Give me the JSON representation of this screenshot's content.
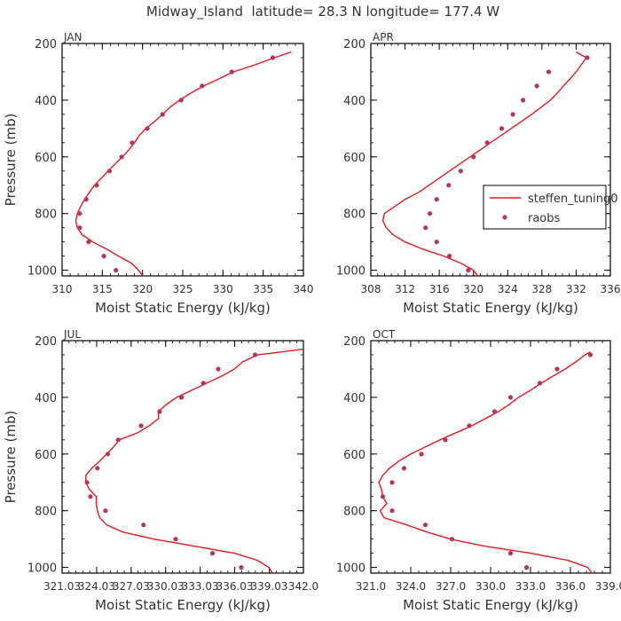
{
  "title": "Midway_Island  latitude= 28.3 N longitude= 177.4 W",
  "chart_data": [
    {
      "type": "line",
      "panel_label": "JAN",
      "xlabel": "Moist Static Energy (kJ/kg)",
      "ylabel": "Pressure (mb)",
      "xlim": [
        310,
        340
      ],
      "ylim": [
        1020,
        200
      ],
      "xticks": [
        "310",
        "315",
        "320",
        "325",
        "330",
        "335",
        "340"
      ],
      "xtick_values": [
        310,
        315,
        320,
        325,
        330,
        335,
        340
      ],
      "yticks": [
        "200",
        "400",
        "600",
        "800",
        "1000"
      ],
      "ytick_values": [
        200,
        400,
        600,
        800,
        1000
      ],
      "series": [
        {
          "name": "steffen_tuning0",
          "kind": "line",
          "color": "#e41a1c",
          "points": [
            [
              320.0,
              1020
            ],
            [
              319.5,
              1000
            ],
            [
              318.6,
              975
            ],
            [
              317.0,
              950
            ],
            [
              315.5,
              925
            ],
            [
              313.8,
              900
            ],
            [
              312.5,
              875
            ],
            [
              311.9,
              850
            ],
            [
              311.7,
              825
            ],
            [
              311.9,
              800
            ],
            [
              312.3,
              775
            ],
            [
              312.8,
              750
            ],
            [
              313.4,
              725
            ],
            [
              314.0,
              700
            ],
            [
              314.9,
              675
            ],
            [
              315.7,
              650
            ],
            [
              316.6,
              625
            ],
            [
              317.5,
              600
            ],
            [
              318.3,
              575
            ],
            [
              319.0,
              550
            ],
            [
              319.6,
              525
            ],
            [
              320.4,
              500
            ],
            [
              321.5,
              475
            ],
            [
              322.5,
              450
            ],
            [
              323.4,
              425
            ],
            [
              324.6,
              400
            ],
            [
              326.0,
              375
            ],
            [
              327.6,
              350
            ],
            [
              329.5,
              325
            ],
            [
              331.3,
              300
            ],
            [
              334.0,
              275
            ],
            [
              336.4,
              250
            ],
            [
              338.5,
              230
            ]
          ]
        },
        {
          "name": "raobs",
          "kind": "markers",
          "color": "#b5345c",
          "points": [
            [
              316.7,
              1000
            ],
            [
              315.2,
              950
            ],
            [
              313.3,
              900
            ],
            [
              312.2,
              850
            ],
            [
              312.2,
              800
            ],
            [
              313.0,
              750
            ],
            [
              314.3,
              700
            ],
            [
              315.9,
              650
            ],
            [
              317.4,
              600
            ],
            [
              318.7,
              550
            ],
            [
              320.6,
              500
            ],
            [
              322.5,
              450
            ],
            [
              324.8,
              400
            ],
            [
              327.4,
              350
            ],
            [
              331.1,
              300
            ],
            [
              336.2,
              250
            ]
          ]
        }
      ]
    },
    {
      "type": "line",
      "panel_label": "APR",
      "xlabel": "Moist Static Energy (kJ/kg)",
      "ylabel": "",
      "xlim": [
        308,
        336
      ],
      "ylim": [
        1020,
        200
      ],
      "xticks": [
        "308",
        "312",
        "316",
        "320",
        "324",
        "328",
        "332",
        "336"
      ],
      "xtick_values": [
        308,
        312,
        316,
        320,
        324,
        328,
        332,
        336
      ],
      "yticks": [
        "200",
        "400",
        "600",
        "800",
        "1000"
      ],
      "ytick_values": [
        200,
        400,
        600,
        800,
        1000
      ],
      "legend": {
        "entries": [
          "steffen_tuning0",
          "raobs"
        ],
        "position": "right-middle"
      },
      "series": [
        {
          "name": "steffen_tuning0",
          "kind": "line",
          "color": "#e41a1c",
          "points": [
            [
              320.5,
              1020
            ],
            [
              320.0,
              1000
            ],
            [
              318.5,
              975
            ],
            [
              316.5,
              950
            ],
            [
              314.0,
              925
            ],
            [
              312.0,
              900
            ],
            [
              310.6,
              875
            ],
            [
              309.8,
              850
            ],
            [
              309.4,
              825
            ],
            [
              309.6,
              800
            ],
            [
              310.8,
              775
            ],
            [
              312.0,
              750
            ],
            [
              313.6,
              725
            ],
            [
              314.8,
              700
            ],
            [
              316.0,
              675
            ],
            [
              317.2,
              650
            ],
            [
              318.4,
              625
            ],
            [
              319.6,
              600
            ],
            [
              320.8,
              575
            ],
            [
              322.0,
              550
            ],
            [
              323.2,
              525
            ],
            [
              324.4,
              500
            ],
            [
              325.6,
              475
            ],
            [
              326.8,
              450
            ],
            [
              327.9,
              425
            ],
            [
              329.0,
              400
            ],
            [
              329.8,
              375
            ],
            [
              330.5,
              350
            ],
            [
              331.3,
              325
            ],
            [
              332.0,
              300
            ],
            [
              332.6,
              275
            ],
            [
              333.2,
              250
            ],
            [
              332.0,
              230
            ]
          ]
        },
        {
          "name": "raobs",
          "kind": "markers",
          "color": "#b5345c",
          "points": [
            [
              319.4,
              1000
            ],
            [
              317.2,
              950
            ],
            [
              315.7,
              900
            ],
            [
              314.4,
              850
            ],
            [
              314.9,
              800
            ],
            [
              315.7,
              750
            ],
            [
              317.1,
              700
            ],
            [
              318.5,
              650
            ],
            [
              320.0,
              600
            ],
            [
              321.6,
              550
            ],
            [
              323.3,
              500
            ],
            [
              324.6,
              450
            ],
            [
              325.8,
              400
            ],
            [
              327.4,
              350
            ],
            [
              328.8,
              300
            ],
            [
              333.3,
              250
            ]
          ]
        }
      ]
    },
    {
      "type": "line",
      "panel_label": "JUL",
      "xlabel": "Moist Static Energy (kJ/kg)",
      "ylabel": "Pressure (mb)",
      "xlim": [
        321.03,
        342.0
      ],
      "ylim": [
        1020,
        200
      ],
      "xticks": [
        "321.03",
        "324.03",
        "327.03",
        "330.03",
        "333.03",
        "336.03",
        "339.03",
        "342.0"
      ],
      "xtick_values": [
        321.03,
        324.03,
        327.03,
        330.03,
        333.03,
        336.03,
        339.03,
        342.0
      ],
      "yticks": [
        "200",
        "400",
        "600",
        "800",
        "1000"
      ],
      "ytick_values": [
        200,
        400,
        600,
        800,
        1000
      ],
      "series": [
        {
          "name": "steffen_tuning0",
          "kind": "line",
          "color": "#e41a1c",
          "points": [
            [
              339.3,
              1020
            ],
            [
              339.0,
              1000
            ],
            [
              338.0,
              975
            ],
            [
              336.0,
              950
            ],
            [
              332.5,
              925
            ],
            [
              329.0,
              900
            ],
            [
              326.3,
              875
            ],
            [
              324.9,
              850
            ],
            [
              324.3,
              825
            ],
            [
              324.1,
              800
            ],
            [
              324.0,
              775
            ],
            [
              324.0,
              750
            ],
            [
              323.4,
              725
            ],
            [
              323.1,
              700
            ],
            [
              323.1,
              675
            ],
            [
              323.6,
              650
            ],
            [
              324.3,
              625
            ],
            [
              324.9,
              600
            ],
            [
              325.5,
              575
            ],
            [
              326.0,
              550
            ],
            [
              327.6,
              525
            ],
            [
              328.6,
              500
            ],
            [
              329.4,
              475
            ],
            [
              329.4,
              450
            ],
            [
              330.1,
              425
            ],
            [
              331.0,
              400
            ],
            [
              332.3,
              375
            ],
            [
              333.6,
              350
            ],
            [
              334.9,
              325
            ],
            [
              336.0,
              300
            ],
            [
              336.7,
              275
            ],
            [
              338.0,
              250
            ],
            [
              342.0,
              230
            ]
          ]
        },
        {
          "name": "raobs",
          "kind": "markers",
          "color": "#b5345c",
          "points": [
            [
              336.6,
              1000
            ],
            [
              334.1,
              950
            ],
            [
              330.9,
              900
            ],
            [
              328.1,
              850
            ],
            [
              324.8,
              800
            ],
            [
              323.5,
              750
            ],
            [
              323.2,
              700
            ],
            [
              324.1,
              650
            ],
            [
              325.0,
              600
            ],
            [
              325.9,
              550
            ],
            [
              327.9,
              500
            ],
            [
              329.5,
              450
            ],
            [
              331.4,
              400
            ],
            [
              333.3,
              350
            ],
            [
              334.6,
              300
            ],
            [
              337.8,
              250
            ]
          ]
        }
      ]
    },
    {
      "type": "line",
      "panel_label": "OCT",
      "xlabel": "Moist Static Energy (kJ/kg)",
      "ylabel": "",
      "xlim": [
        321.0,
        339.0
      ],
      "ylim": [
        1020,
        200
      ],
      "xticks": [
        "321.0",
        "324.0",
        "327.0",
        "330.0",
        "333.0",
        "336.0",
        "339.0"
      ],
      "xtick_values": [
        321.0,
        324.0,
        327.0,
        330.0,
        333.0,
        336.0,
        339.0
      ],
      "yticks": [
        "200",
        "400",
        "600",
        "800",
        "1000"
      ],
      "ytick_values": [
        200,
        400,
        600,
        800,
        1000
      ],
      "series": [
        {
          "name": "steffen_tuning0",
          "kind": "line",
          "color": "#e41a1c",
          "points": [
            [
              337.6,
              1020
            ],
            [
              337.3,
              1000
            ],
            [
              335.8,
              975
            ],
            [
              333.0,
              950
            ],
            [
              329.5,
              925
            ],
            [
              327.0,
              900
            ],
            [
              325.2,
              875
            ],
            [
              323.7,
              850
            ],
            [
              322.0,
              825
            ],
            [
              321.7,
              800
            ],
            [
              322.2,
              775
            ],
            [
              321.9,
              750
            ],
            [
              321.8,
              725
            ],
            [
              321.6,
              700
            ],
            [
              321.9,
              675
            ],
            [
              322.4,
              650
            ],
            [
              323.1,
              625
            ],
            [
              324.0,
              600
            ],
            [
              325.1,
              575
            ],
            [
              326.2,
              550
            ],
            [
              327.4,
              525
            ],
            [
              328.6,
              500
            ],
            [
              329.6,
              475
            ],
            [
              330.6,
              450
            ],
            [
              331.4,
              425
            ],
            [
              332.1,
              400
            ],
            [
              333.0,
              375
            ],
            [
              333.8,
              350
            ],
            [
              334.7,
              325
            ],
            [
              335.6,
              300
            ],
            [
              336.4,
              275
            ],
            [
              337.1,
              250
            ],
            [
              337.5,
              240
            ]
          ]
        },
        {
          "name": "raobs",
          "kind": "markers",
          "color": "#b5345c",
          "points": [
            [
              332.7,
              1000
            ],
            [
              331.5,
              950
            ],
            [
              327.1,
              900
            ],
            [
              325.1,
              850
            ],
            [
              322.6,
              800
            ],
            [
              321.9,
              750
            ],
            [
              322.6,
              700
            ],
            [
              323.5,
              650
            ],
            [
              324.8,
              600
            ],
            [
              326.6,
              550
            ],
            [
              328.4,
              500
            ],
            [
              330.3,
              450
            ],
            [
              331.5,
              400
            ],
            [
              333.7,
              350
            ],
            [
              335.0,
              300
            ],
            [
              337.5,
              250
            ]
          ]
        }
      ]
    }
  ]
}
